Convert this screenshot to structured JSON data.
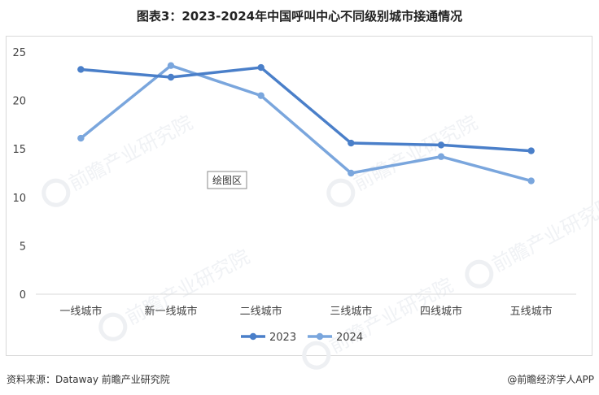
{
  "title": "图表3：2023-2024年中国呼叫中心不同级别城市接通情况",
  "plot_area_label": "绘图区",
  "footer": {
    "source": "资料来源：Dataway 前瞻产业研究院",
    "brand": "@前瞻经济学人APP"
  },
  "watermark": "前瞻产业研究院",
  "colors": {
    "s2023": "#4a7fc9",
    "s2024": "#7aa6dd",
    "grid": "#d9d9d9"
  },
  "chart_data": {
    "type": "line",
    "categories": [
      "一线城市",
      "新一线城市",
      "二线城市",
      "三线城市",
      "四线城市",
      "五线城市"
    ],
    "series": [
      {
        "name": "2023",
        "values": [
          23.2,
          22.4,
          23.4,
          15.6,
          15.4,
          14.8
        ]
      },
      {
        "name": "2024",
        "values": [
          16.1,
          23.6,
          20.5,
          12.5,
          14.2,
          11.7
        ]
      }
    ],
    "ylim": [
      0,
      25
    ],
    "yticks": [
      "0",
      "5",
      "10",
      "15",
      "20",
      "25"
    ],
    "grid": false,
    "legend": "bottom-center"
  }
}
